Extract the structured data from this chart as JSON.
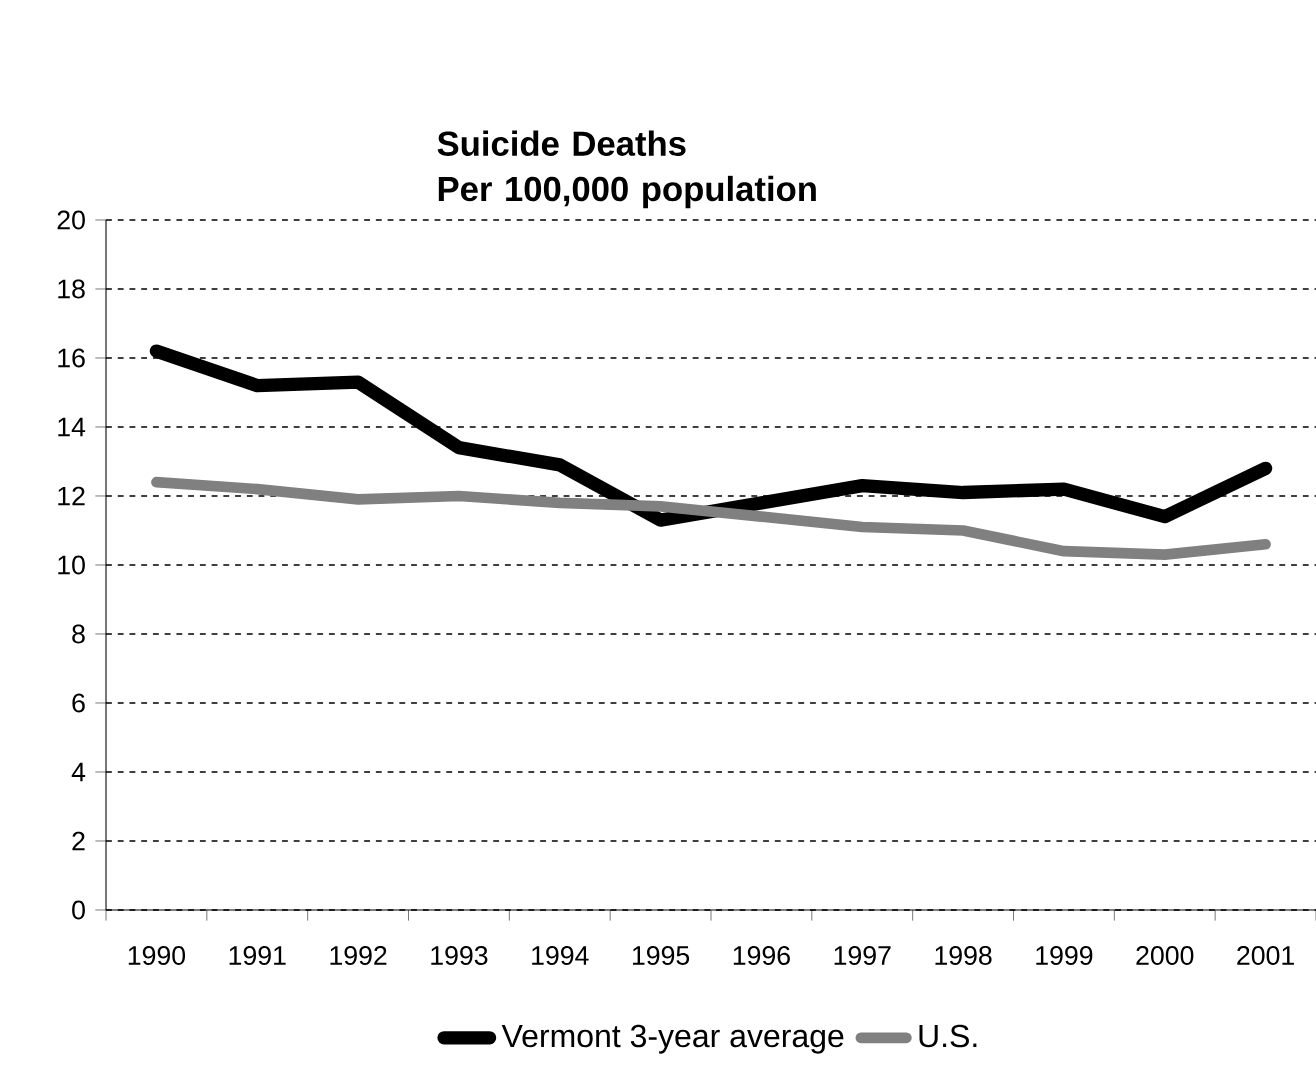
{
  "chart_data": {
    "type": "line",
    "title": "Suicide Deaths\nPer 100,000 population",
    "categories": [
      "1990",
      "1991",
      "1992",
      "1993",
      "1994",
      "1995",
      "1996",
      "1997",
      "1998",
      "1999",
      "2000",
      "2001"
    ],
    "series": [
      {
        "name": "Vermont 3-year average",
        "color": "#000000",
        "values": [
          16.2,
          15.2,
          15.3,
          13.4,
          12.9,
          11.3,
          11.8,
          12.3,
          12.1,
          12.2,
          11.4,
          12.8
        ]
      },
      {
        "name": "U.S.",
        "color": "#808080",
        "values": [
          12.4,
          12.2,
          11.9,
          12.0,
          11.8,
          11.7,
          11.4,
          11.1,
          11.0,
          10.4,
          10.3,
          10.6
        ]
      }
    ],
    "ylim": [
      0,
      20
    ],
    "yticks": [
      0,
      2,
      4,
      6,
      8,
      10,
      12,
      14,
      16,
      18,
      20
    ],
    "grid": "y",
    "legend": "bottom",
    "marker": "none",
    "line_style": "solid"
  }
}
